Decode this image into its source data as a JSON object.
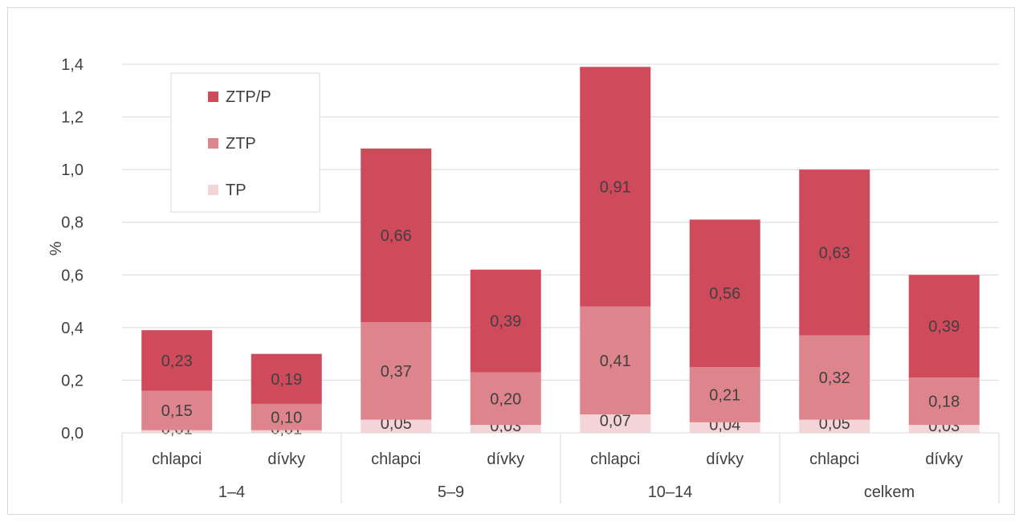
{
  "chart_data": {
    "type": "bar",
    "stacked": true,
    "ylabel": "%",
    "ylim": [
      0,
      1.4
    ],
    "yticks": [
      "0,0",
      "0,2",
      "0,4",
      "0,6",
      "0,8",
      "1,0",
      "1,2",
      "1,4"
    ],
    "groups": [
      {
        "label": "1–4",
        "categories": [
          "chlapci",
          "dívky"
        ]
      },
      {
        "label": "5–9",
        "categories": [
          "chlapci",
          "dívky"
        ]
      },
      {
        "label": "10–14",
        "categories": [
          "chlapci",
          "dívky"
        ]
      },
      {
        "label": "celkem",
        "categories": [
          "chlapci",
          "dívky"
        ]
      }
    ],
    "series": [
      {
        "name": "TP",
        "color": "#f5d4d8",
        "values": [
          0.01,
          0.01,
          0.05,
          0.03,
          0.07,
          0.04,
          0.05,
          0.03
        ],
        "labels": [
          "0,01",
          "0,01",
          "0,05",
          "0,03",
          "0,07",
          "0,04",
          "0,05",
          "0,03"
        ]
      },
      {
        "name": "ZTP",
        "color": "#de848d",
        "values": [
          0.15,
          0.1,
          0.37,
          0.2,
          0.41,
          0.21,
          0.32,
          0.18
        ],
        "labels": [
          "0,15",
          "0,10",
          "0,37",
          "0,20",
          "0,41",
          "0,21",
          "0,32",
          "0,18"
        ]
      },
      {
        "name": "ZTP/P",
        "color": "#cf4a5b",
        "values": [
          0.23,
          0.19,
          0.66,
          0.39,
          0.91,
          0.56,
          0.63,
          0.39
        ],
        "labels": [
          "0,23",
          "0,19",
          "0,66",
          "0,39",
          "0,91",
          "0,56",
          "0,63",
          "0,39"
        ]
      }
    ],
    "legend": {
      "position": "top-left",
      "order": [
        "ZTP/P",
        "ZTP",
        "TP"
      ]
    },
    "grid": true
  }
}
